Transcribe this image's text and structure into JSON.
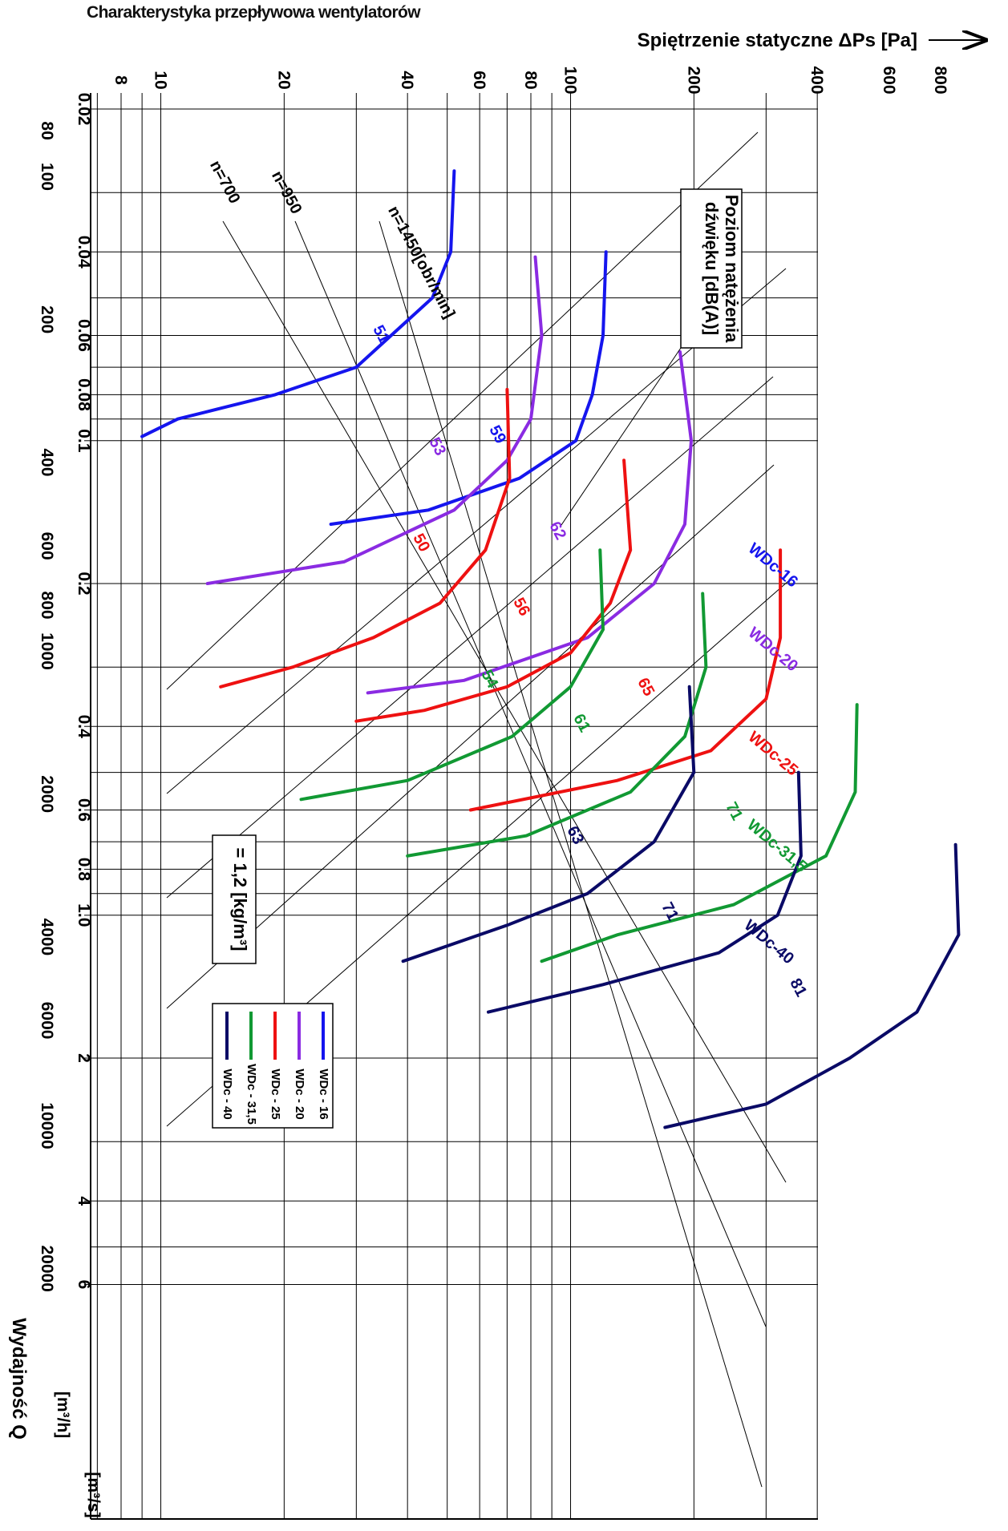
{
  "title": "Charakterystyka przepływowa wentylatorów",
  "chart_data": {
    "type": "line",
    "orientation": "rotated-90-clockwise",
    "yaxis": {
      "label": "Spiętrzenie statyczne ΔPs [Pa]",
      "scale": "log",
      "range": [
        6,
        1000
      ],
      "tick_labels": [
        "8",
        "10",
        "20",
        "40",
        "60",
        "80",
        "100",
        "200",
        "400",
        "600",
        "800"
      ]
    },
    "xaxis": {
      "label": "Wydajność Q",
      "scale": "log",
      "unit_m3h": "[m³/h]",
      "unit_m3s": "[m³/s]",
      "range_m3s": [
        0.016,
        6.2
      ],
      "ticks_m3s": [
        "0.02",
        "0.04",
        "0.06",
        "0.08",
        "0.1",
        "0.2",
        "0.4",
        "0.6",
        "0.8",
        "1.0",
        "2",
        "4",
        "6"
      ],
      "ticks_m3h": [
        "80",
        "100",
        "200",
        "400",
        "600",
        "800",
        "1000",
        "2000",
        "4000",
        "6000",
        "10000",
        "20000"
      ]
    },
    "density_label": "= 1,2 [kg/m³]",
    "sound_box_label": [
      "Poziom natężenia",
      "dźwięku [dB(A)]"
    ],
    "speed_lines": [
      {
        "label": "n=1450[obr/min]"
      },
      {
        "label": "n=950"
      },
      {
        "label": "n=700"
      }
    ],
    "series": [
      {
        "name": "WDc-16",
        "color": "#1515ee",
        "curves": [
          {
            "n": 1450,
            "points": [
              [
                0.027,
                52
              ],
              [
                0.04,
                51
              ],
              [
                0.05,
                46
              ],
              [
                0.07,
                30
              ],
              [
                0.08,
                19
              ],
              [
                0.09,
                11
              ],
              [
                0.098,
                9
              ]
            ]
          },
          {
            "n": 950,
            "points": [
              [
                0.04,
                122
              ],
              [
                0.06,
                120
              ],
              [
                0.08,
                113
              ],
              [
                0.1,
                103
              ],
              [
                0.12,
                75
              ],
              [
                0.14,
                45
              ],
              [
                0.15,
                26
              ]
            ]
          }
        ],
        "level_labels": [
          "51",
          "59"
        ]
      },
      {
        "name": "WDc-20",
        "color": "#8a2be2",
        "curves": [
          {
            "n": 1450,
            "points": [
              [
                0.041,
                82
              ],
              [
                0.06,
                85
              ],
              [
                0.09,
                80
              ],
              [
                0.11,
                70
              ],
              [
                0.14,
                52
              ],
              [
                0.18,
                28
              ],
              [
                0.2,
                13
              ]
            ]
          },
          {
            "n": 950,
            "points": [
              [
                0.065,
                185
              ],
              [
                0.1,
                197
              ],
              [
                0.15,
                190
              ],
              [
                0.2,
                160
              ],
              [
                0.26,
                110
              ],
              [
                0.32,
                55
              ],
              [
                0.34,
                32
              ]
            ]
          }
        ],
        "level_labels": [
          "53",
          "62"
        ]
      },
      {
        "name": "WDc-25",
        "color": "#ee1111",
        "curves": [
          {
            "n": 1450,
            "points": [
              [
                0.078,
                70
              ],
              [
                0.12,
                71
              ],
              [
                0.17,
                62
              ],
              [
                0.22,
                48
              ],
              [
                0.26,
                33
              ],
              [
                0.3,
                21
              ],
              [
                0.33,
                14
              ]
            ]
          },
          {
            "n": 950,
            "points": [
              [
                0.11,
                135
              ],
              [
                0.17,
                140
              ],
              [
                0.22,
                125
              ],
              [
                0.28,
                100
              ],
              [
                0.33,
                70
              ],
              [
                0.37,
                44
              ],
              [
                0.39,
                30
              ]
            ]
          },
          {
            "n": 700,
            "points": [
              [
                0.17,
                325
              ],
              [
                0.26,
                325
              ],
              [
                0.35,
                300
              ],
              [
                0.45,
                220
              ],
              [
                0.52,
                130
              ],
              [
                0.6,
                57
              ]
            ]
          }
        ],
        "level_labels": [
          "50",
          "56",
          "65"
        ]
      },
      {
        "name": "WDc-31,5",
        "color": "#119933",
        "curves": [
          {
            "n": 1450,
            "points": [
              [
                0.17,
                118
              ],
              [
                0.25,
                120
              ],
              [
                0.33,
                100
              ],
              [
                0.42,
                72
              ],
              [
                0.52,
                40
              ],
              [
                0.57,
                22
              ]
            ]
          },
          {
            "n": 950,
            "points": [
              [
                0.21,
                210
              ],
              [
                0.3,
                214
              ],
              [
                0.42,
                190
              ],
              [
                0.55,
                140
              ],
              [
                0.68,
                78
              ],
              [
                0.75,
                40
              ]
            ]
          },
          {
            "n": 700,
            "points": [
              [
                0.36,
                500
              ],
              [
                0.55,
                495
              ],
              [
                0.75,
                420
              ],
              [
                0.95,
                250
              ],
              [
                1.1,
                130
              ],
              [
                1.25,
                85
              ]
            ]
          }
        ],
        "level_labels": [
          "54",
          "61",
          "71"
        ]
      },
      {
        "name": "WDc-40",
        "color": "#0a0a66",
        "curves": [
          {
            "n": 1450,
            "points": [
              [
                0.33,
                195
              ],
              [
                0.5,
                200
              ],
              [
                0.7,
                160
              ],
              [
                0.9,
                110
              ],
              [
                1.05,
                70
              ],
              [
                1.25,
                39
              ]
            ]
          },
          {
            "n": 950,
            "points": [
              [
                0.5,
                360
              ],
              [
                0.75,
                365
              ],
              [
                1.0,
                320
              ],
              [
                1.2,
                230
              ],
              [
                1.4,
                120
              ],
              [
                1.6,
                63
              ]
            ]
          },
          {
            "n": 700,
            "points": [
              [
                0.71,
                870
              ],
              [
                1.1,
                885
              ],
              [
                1.6,
                700
              ],
              [
                2.0,
                480
              ],
              [
                2.5,
                300
              ],
              [
                2.8,
                170
              ]
            ]
          }
        ],
        "level_labels": [
          "63",
          "71",
          "81"
        ]
      }
    ],
    "legend": {
      "position": "bottom-left (rotated)",
      "entries": [
        "WDc - 16",
        "WDc - 20",
        "WDc - 25",
        "WDc - 31,5",
        "WDc - 40"
      ]
    },
    "grid": true
  }
}
